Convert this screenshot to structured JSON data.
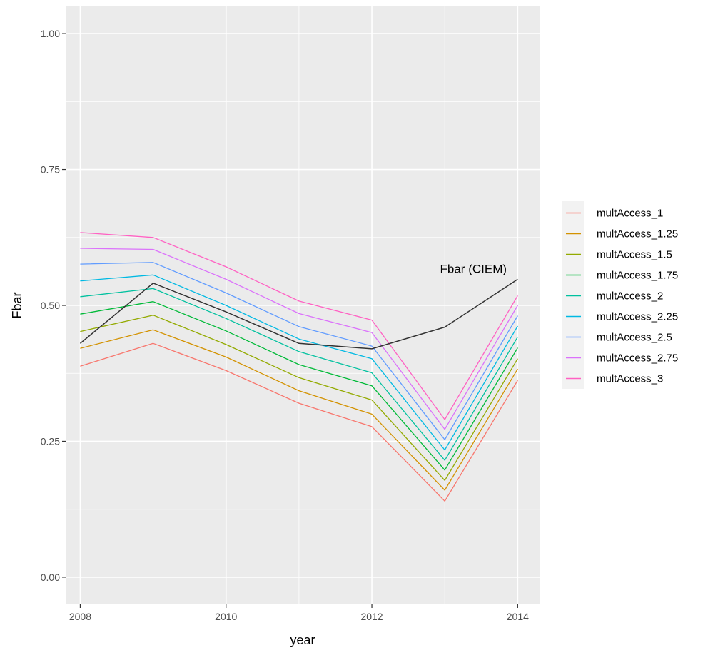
{
  "chart_data": {
    "type": "line",
    "xlabel": "year",
    "ylabel": "Fbar",
    "xlim": [
      2007.8,
      2014.3
    ],
    "ylim": [
      -0.05,
      1.05
    ],
    "x_ticks": [
      2008,
      2010,
      2012,
      2014
    ],
    "x_tick_labels": [
      "2008",
      "2010",
      "2012",
      "2014"
    ],
    "y_ticks": [
      0.0,
      0.25,
      0.5,
      0.75,
      1.0
    ],
    "y_tick_labels": [
      "0.00",
      "0.25",
      "0.50",
      "0.75",
      "1.00"
    ],
    "grid": true,
    "legend_position": "right",
    "x": [
      2008,
      2009,
      2010,
      2011,
      2012,
      2013,
      2014
    ],
    "series": [
      {
        "name": "multAccess_1",
        "color": "#F8766D",
        "values": [
          0.388,
          0.43,
          0.38,
          0.32,
          0.277,
          0.14,
          0.362
        ]
      },
      {
        "name": "multAccess_1.25",
        "color": "#D39200",
        "values": [
          0.421,
          0.455,
          0.405,
          0.343,
          0.3,
          0.16,
          0.383
        ]
      },
      {
        "name": "multAccess_1.5",
        "color": "#93AA00",
        "values": [
          0.452,
          0.482,
          0.428,
          0.367,
          0.326,
          0.178,
          0.402
        ]
      },
      {
        "name": "multAccess_1.75",
        "color": "#00BA38",
        "values": [
          0.484,
          0.507,
          0.453,
          0.391,
          0.352,
          0.197,
          0.422
        ]
      },
      {
        "name": "multAccess_2",
        "color": "#00C19F",
        "values": [
          0.516,
          0.531,
          0.476,
          0.415,
          0.376,
          0.215,
          0.442
        ]
      },
      {
        "name": "multAccess_2.25",
        "color": "#00B9E3",
        "values": [
          0.545,
          0.556,
          0.5,
          0.438,
          0.402,
          0.234,
          0.462
        ]
      },
      {
        "name": "multAccess_2.5",
        "color": "#619CFF",
        "values": [
          0.576,
          0.579,
          0.523,
          0.461,
          0.425,
          0.253,
          0.481
        ]
      },
      {
        "name": "multAccess_2.75",
        "color": "#DB72FB",
        "values": [
          0.605,
          0.603,
          0.548,
          0.485,
          0.45,
          0.272,
          0.5
        ]
      },
      {
        "name": "multAccess_3",
        "color": "#FF61C3",
        "values": [
          0.634,
          0.625,
          0.571,
          0.508,
          0.473,
          0.29,
          0.518
        ]
      }
    ],
    "reference_series": {
      "color": "#000000",
      "values": [
        0.43,
        0.541,
        0.488,
        0.43,
        0.42,
        0.46,
        0.548
      ]
    },
    "annotations": [
      {
        "text": "Fbar (CIEM)",
        "x": 2013.85,
        "y": 0.56
      }
    ],
    "colors": {
      "panel_background": "#EBEBEB",
      "grid": "#FFFFFF",
      "legend_key_background": "#F2F2F2"
    }
  }
}
